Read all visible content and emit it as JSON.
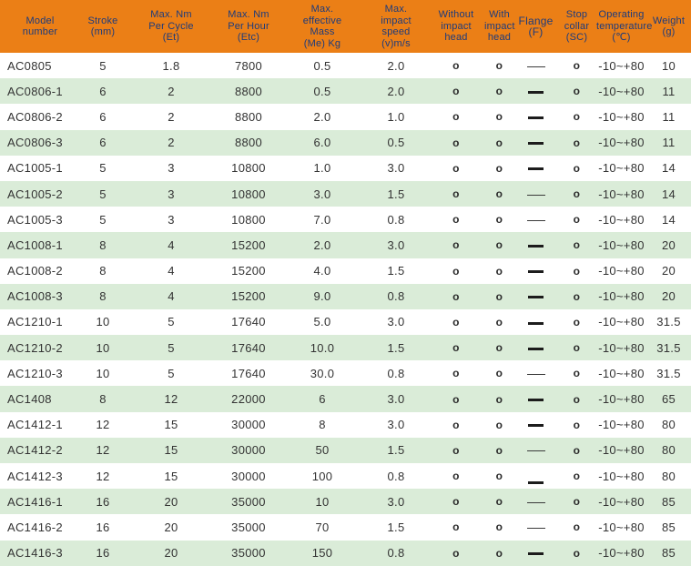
{
  "colors": {
    "header_background": "#EB7F16",
    "header_text": "#1C3B7D",
    "row_alternate_green": "#DAECD8",
    "row_white": "#FFFFFF",
    "body_text": "#333333"
  },
  "table": {
    "columns": [
      {
        "key": "model",
        "label": "Model\nnumber"
      },
      {
        "key": "stroke",
        "label": "Stroke\n(mm)"
      },
      {
        "key": "max_nm_per_cycle",
        "label": "Max. Nm\nPer Cycle\n(Et)"
      },
      {
        "key": "max_nm_per_hour",
        "label": "Max. Nm\nPer Hour\n(Etc)"
      },
      {
        "key": "max_effective_mass",
        "label": "Max.\neffective\nMass\n(Me) Kg"
      },
      {
        "key": "max_impact_speed",
        "label": "Max.\nimpact\nspeed\n(v)m/s"
      },
      {
        "key": "without_impact_head",
        "label": "Without\nimpact\nhead"
      },
      {
        "key": "with_impact_head",
        "label": "With\nimpact\nhead"
      },
      {
        "key": "flange",
        "label": "Flange\n(F)"
      },
      {
        "key": "stop_collar",
        "label": "Stop\ncollar\n(SC)"
      },
      {
        "key": "operating_temperature",
        "label": "Operating\ntemperature\n(℃)"
      },
      {
        "key": "weight",
        "label": "Weight\n(g)"
      }
    ],
    "rows": [
      [
        "AC0805",
        "5",
        "1.8",
        "7800",
        "0.5",
        "2.0",
        "o",
        "o",
        "thin",
        "o",
        "-10~+80",
        "10"
      ],
      [
        "AC0806-1",
        "6",
        "2",
        "8800",
        "0.5",
        "2.0",
        "o",
        "o",
        "thick",
        "o",
        "-10~+80",
        "11"
      ],
      [
        "AC0806-2",
        "6",
        "2",
        "8800",
        "2.0",
        "1.0",
        "o",
        "o",
        "thick",
        "o",
        "-10~+80",
        "11"
      ],
      [
        "AC0806-3",
        "6",
        "2",
        "8800",
        "6.0",
        "0.5",
        "o",
        "o",
        "thick",
        "o",
        "-10~+80",
        "11"
      ],
      [
        "AC1005-1",
        "5",
        "3",
        "10800",
        "1.0",
        "3.0",
        "o",
        "o",
        "thick",
        "o",
        "-10~+80",
        "14"
      ],
      [
        "AC1005-2",
        "5",
        "3",
        "10800",
        "3.0",
        "1.5",
        "o",
        "o",
        "thin",
        "o",
        "-10~+80",
        "14"
      ],
      [
        "AC1005-3",
        "5",
        "3",
        "10800",
        "7.0",
        "0.8",
        "o",
        "o",
        "thin",
        "o",
        "-10~+80",
        "14"
      ],
      [
        "AC1008-1",
        "8",
        "4",
        "15200",
        "2.0",
        "3.0",
        "o",
        "o",
        "thick",
        "o",
        "-10~+80",
        "20"
      ],
      [
        "AC1008-2",
        "8",
        "4",
        "15200",
        "4.0",
        "1.5",
        "o",
        "o",
        "thick",
        "o",
        "-10~+80",
        "20"
      ],
      [
        "AC1008-3",
        "8",
        "4",
        "15200",
        "9.0",
        "0.8",
        "o",
        "o",
        "thick",
        "o",
        "-10~+80",
        "20"
      ],
      [
        "AC1210-1",
        "10",
        "5",
        "17640",
        "5.0",
        "3.0",
        "o",
        "o",
        "thick",
        "o",
        "-10~+80",
        "31.5"
      ],
      [
        "AC1210-2",
        "10",
        "5",
        "17640",
        "10.0",
        "1.5",
        "o",
        "o",
        "thick",
        "o",
        "-10~+80",
        "31.5"
      ],
      [
        "AC1210-3",
        "10",
        "5",
        "17640",
        "30.0",
        "0.8",
        "o",
        "o",
        "thin",
        "o",
        "-10~+80",
        "31.5"
      ],
      [
        "AC1408",
        "8",
        "12",
        "22000",
        "6",
        "3.0",
        "o",
        "o",
        "thick",
        "o",
        "-10~+80",
        "65"
      ],
      [
        "AC1412-1",
        "12",
        "15",
        "30000",
        "8",
        "3.0",
        "o",
        "o",
        "thick",
        "o",
        "-10~+80",
        "80"
      ],
      [
        "AC1412-2",
        "12",
        "15",
        "30000",
        "50",
        "1.5",
        "o",
        "o",
        "thin",
        "o",
        "-10~+80",
        "80"
      ],
      [
        "AC1412-3",
        "12",
        "15",
        "30000",
        "100",
        "0.8",
        "o",
        "o",
        "thick-low",
        "o",
        "-10~+80",
        "80"
      ],
      [
        "AC1416-1",
        "16",
        "20",
        "35000",
        "10",
        "3.0",
        "o",
        "o",
        "thin",
        "o",
        "-10~+80",
        "85"
      ],
      [
        "AC1416-2",
        "16",
        "20",
        "35000",
        "70",
        "1.5",
        "o",
        "o",
        "thin",
        "o",
        "-10~+80",
        "85"
      ],
      [
        "AC1416-3",
        "16",
        "20",
        "35000",
        "150",
        "0.8",
        "o",
        "o",
        "thick",
        "o",
        "-10~+80",
        "85"
      ]
    ]
  }
}
